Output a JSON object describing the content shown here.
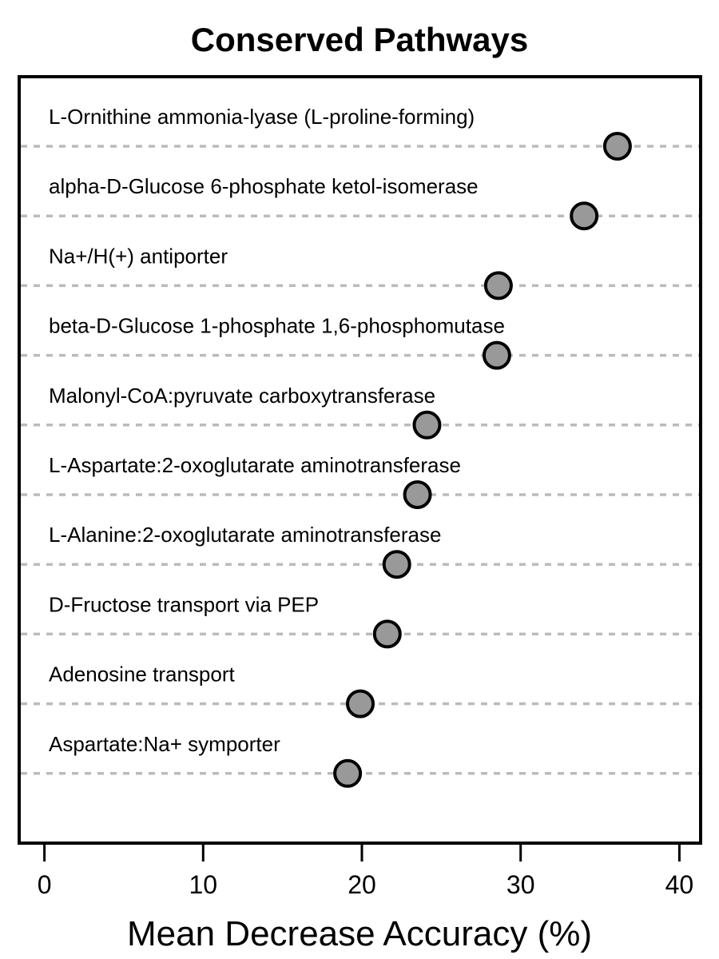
{
  "chart_data": {
    "type": "scatter",
    "title": "Conserved Pathways",
    "xlabel": "Mean Decrease Accuracy (%)",
    "ylabel": "",
    "xlim": [
      -1.6,
      41.2
    ],
    "xticks": [
      0,
      10,
      20,
      30,
      40
    ],
    "xtick_labels": [
      "0",
      "10",
      "20",
      "30",
      "40"
    ],
    "grid": "dashed horizontal guide per row",
    "colors": {
      "point_fill": "#999999",
      "point_stroke": "#000000",
      "guide": "#bbbbbb"
    },
    "categories": [
      "L-Ornithine ammonia-lyase (L-proline-forming)",
      "alpha-D-Glucose 6-phosphate ketol-isomerase",
      "Na+/H(+) antiporter",
      "beta-D-Glucose 1-phosphate 1,6-phosphomutase",
      "Malonyl-CoA:pyruvate carboxytransferase",
      "L-Aspartate:2-oxoglutarate aminotransferase",
      "L-Alanine:2-oxoglutarate aminotransferase",
      "D-Fructose transport via PEP",
      "Adenosine transport",
      "Aspartate:Na+ symporter"
    ],
    "values": [
      36.1,
      34.0,
      28.6,
      28.5,
      24.1,
      23.5,
      22.2,
      21.6,
      19.9,
      19.1
    ]
  }
}
